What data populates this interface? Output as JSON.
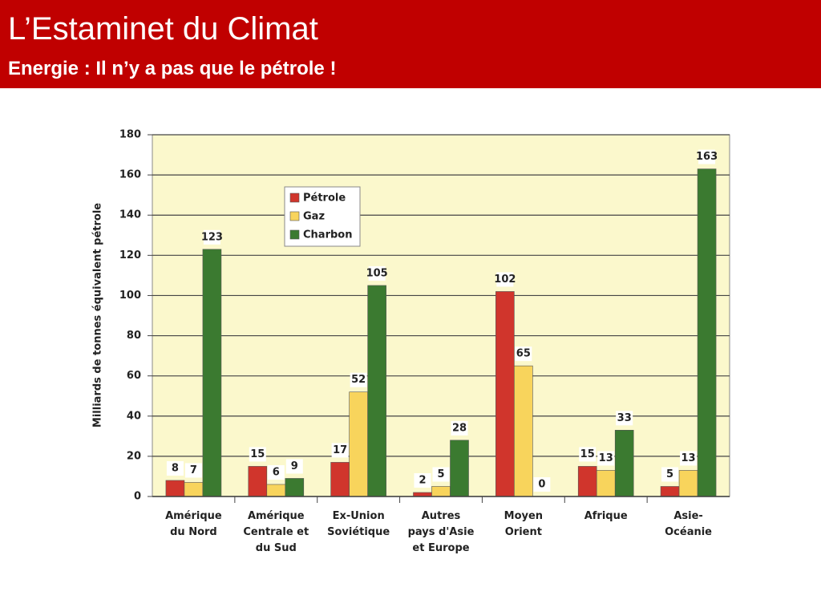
{
  "header": {
    "title": "L’Estaminet du Climat",
    "subtitle": "Energie : Il n’y a pas que le pétrole !"
  },
  "chart_data": {
    "type": "bar",
    "y_label": "Milliards de tonnes équivalent pétrole",
    "categories": [
      "Amérique\ndu Nord",
      "Amérique\nCentrale et\ndu Sud",
      "Ex-Union\nSoviétique",
      "Autres\npays d'Asie\net Europe",
      "Moyen\nOrient",
      "Afrique",
      "Asie-\nOcéanie"
    ],
    "series": [
      {
        "name": "Pétrole",
        "color": "#d0352c",
        "values": [
          8,
          15,
          17,
          2,
          102,
          15,
          5
        ]
      },
      {
        "name": "Gaz",
        "color": "#f8d45c",
        "values": [
          7,
          6,
          52,
          5,
          65,
          13,
          13
        ]
      },
      {
        "name": "Charbon",
        "color": "#3b7a30",
        "values": [
          123,
          9,
          105,
          28,
          0,
          33,
          163
        ]
      }
    ],
    "ylim": [
      0,
      180
    ],
    "yticks": [
      0,
      20,
      40,
      60,
      80,
      100,
      120,
      140,
      160,
      180
    ],
    "grid": true,
    "legend": "top-left"
  }
}
